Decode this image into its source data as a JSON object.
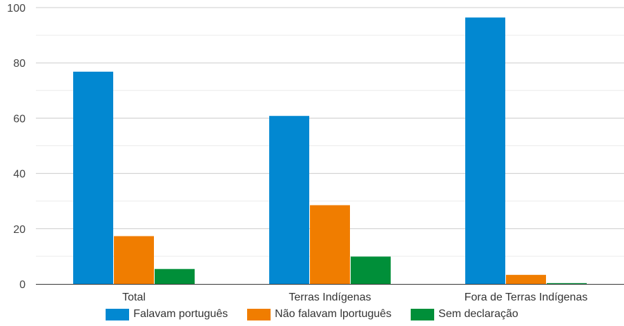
{
  "chart_data": {
    "type": "bar",
    "categories": [
      "Total",
      "Terras Indígenas",
      "Fora de Terras Indígenas"
    ],
    "series": [
      {
        "name": "Falavam português",
        "color": "#0288d1",
        "values": [
          76.8,
          60.8,
          96.4
        ]
      },
      {
        "name": "Não falavam lportuguês",
        "color": "#f07d00",
        "values": [
          17.3,
          28.5,
          3.3
        ]
      },
      {
        "name": "Sem declaração",
        "color": "#008f39",
        "values": [
          5.4,
          9.9,
          0.3
        ]
      }
    ],
    "ylim": [
      0,
      100
    ],
    "yticks": [
      0,
      20,
      40,
      60,
      80,
      100
    ],
    "grid": true,
    "legend_position": "bottom"
  }
}
